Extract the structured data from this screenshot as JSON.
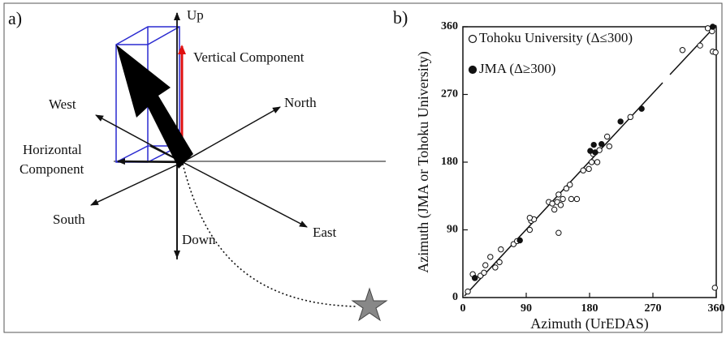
{
  "panel_a": {
    "label": "a)",
    "up": "Up",
    "vertical_component": "Vertical Component",
    "west": "West",
    "north": "North",
    "horizontal_component": [
      "Horizontal",
      "Component"
    ],
    "south": "South",
    "east": "East",
    "down": "Down"
  },
  "chart_data": {
    "type": "scatter",
    "panel_label": "b)",
    "xlabel": "Azimuth (UrEDAS)",
    "ylabel": "Azimuth (JMA or Tohoku University)",
    "xlim": [
      0,
      360
    ],
    "ylim": [
      0,
      360
    ],
    "xticks": [
      0,
      90,
      180,
      270,
      360
    ],
    "yticks": [
      0,
      90,
      180,
      270,
      360
    ],
    "series": [
      {
        "name": "Tohoku University (Δ≤300)",
        "marker": "open",
        "color": "#111",
        "x": [
          7,
          14,
          17,
          25,
          30,
          32,
          39,
          46,
          52,
          54,
          72,
          77,
          95,
          97,
          101,
          95,
          122,
          127,
          130,
          134,
          136,
          139,
          136,
          142,
          147,
          152,
          154,
          162,
          171,
          179,
          183,
          191,
          185,
          194,
          205,
          208,
          238,
          312,
          348,
          354,
          355,
          359,
          358,
          337
        ],
        "values": [
          8,
          31,
          26,
          29,
          33,
          43,
          54,
          40,
          47,
          64,
          71,
          75,
          90,
          102,
          104,
          106,
          127,
          125,
          117,
          127,
          137,
          123,
          86,
          131,
          145,
          150,
          131,
          131,
          169,
          171,
          180,
          180,
          191,
          196,
          214,
          201,
          240,
          329,
          358,
          354,
          327,
          326,
          13,
          335
        ]
      },
      {
        "name": "JMA (Δ≥300)",
        "marker": "filled",
        "color": "#111",
        "x": [
          17,
          81,
          181,
          186,
          188,
          197,
          224,
          254,
          355
        ],
        "values": [
          26,
          76,
          195,
          203,
          193,
          204,
          234,
          251,
          360
        ]
      }
    ]
  }
}
